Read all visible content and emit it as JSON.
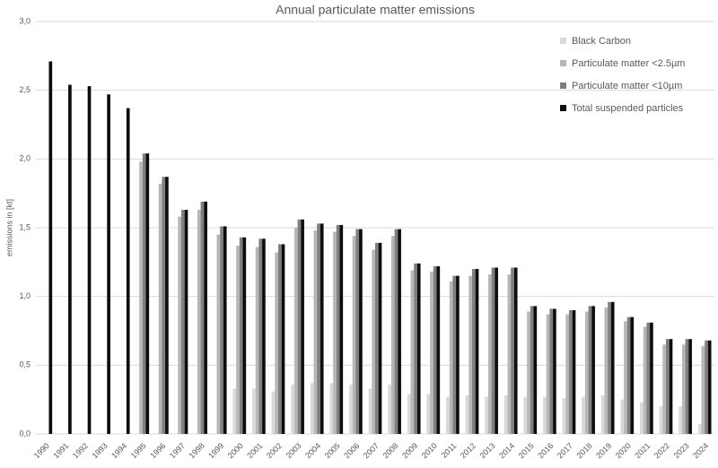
{
  "chart_data": {
    "type": "bar",
    "title": "Annual particulate matter emissions",
    "y_label": "emissions in [kt]",
    "categories": [
      "1990",
      "1991",
      "1992",
      "1993",
      "1994",
      "1995",
      "1996",
      "1997",
      "1998",
      "1999",
      "2000",
      "2001",
      "2002",
      "2003",
      "2004",
      "2005",
      "2006",
      "2007",
      "2008",
      "2009",
      "2010",
      "2011",
      "2012",
      "2013",
      "2014",
      "2015",
      "2016",
      "2017",
      "2018",
      "2019",
      "2020",
      "2021",
      "2022",
      "2023",
      "2024"
    ],
    "series": [
      {
        "name": "Black Carbon",
        "color": "#d9d9d9",
        "values": [
          null,
          null,
          null,
          null,
          null,
          null,
          null,
          null,
          null,
          null,
          0.33,
          0.33,
          0.31,
          0.36,
          0.37,
          0.37,
          0.36,
          0.33,
          0.36,
          0.29,
          0.29,
          0.27,
          0.28,
          0.27,
          0.28,
          0.27,
          0.27,
          0.26,
          0.27,
          0.28,
          0.25,
          0.23,
          0.2,
          0.2,
          0.07
        ]
      },
      {
        "name": "Particulate matter <2.5µm",
        "color": "#b7b7b7",
        "values": [
          null,
          null,
          null,
          null,
          null,
          1.98,
          1.82,
          1.58,
          1.63,
          1.45,
          1.37,
          1.36,
          1.32,
          1.5,
          1.48,
          1.47,
          1.44,
          1.34,
          1.44,
          1.19,
          1.18,
          1.11,
          1.15,
          1.16,
          1.16,
          0.89,
          0.87,
          0.87,
          0.89,
          0.92,
          0.82,
          0.78,
          0.65,
          0.65,
          0.64
        ]
      },
      {
        "name": "Particulate matter <10µm",
        "color": "#7f7f7f",
        "values": [
          null,
          null,
          null,
          null,
          null,
          2.04,
          1.87,
          1.63,
          1.69,
          1.51,
          1.43,
          1.42,
          1.38,
          1.56,
          1.53,
          1.52,
          1.49,
          1.39,
          1.49,
          1.24,
          1.22,
          1.15,
          1.2,
          1.21,
          1.21,
          0.93,
          0.91,
          0.9,
          0.93,
          0.96,
          0.85,
          0.81,
          0.69,
          0.69,
          0.68
        ]
      },
      {
        "name": "Total suspended particles",
        "color": "#0d0d0d",
        "values": [
          2.71,
          2.54,
          2.53,
          2.47,
          2.37,
          2.04,
          1.87,
          1.63,
          1.69,
          1.51,
          1.43,
          1.42,
          1.38,
          1.56,
          1.53,
          1.52,
          1.49,
          1.39,
          1.49,
          1.24,
          1.22,
          1.15,
          1.2,
          1.21,
          1.21,
          0.93,
          0.91,
          0.9,
          0.93,
          0.96,
          0.85,
          0.81,
          0.69,
          0.69,
          0.68
        ]
      }
    ],
    "ylim": [
      0,
      3
    ],
    "yticks": [
      {
        "value": 0,
        "label": "0,0"
      },
      {
        "value": 0.5,
        "label": "0,5"
      },
      {
        "value": 1,
        "label": "1,0"
      },
      {
        "value": 1.5,
        "label": "1,5"
      },
      {
        "value": 2,
        "label": "2,0"
      },
      {
        "value": 2.5,
        "label": "2,5"
      },
      {
        "value": 3,
        "label": "3,0"
      }
    ],
    "grid": true,
    "legend": "top-right"
  }
}
